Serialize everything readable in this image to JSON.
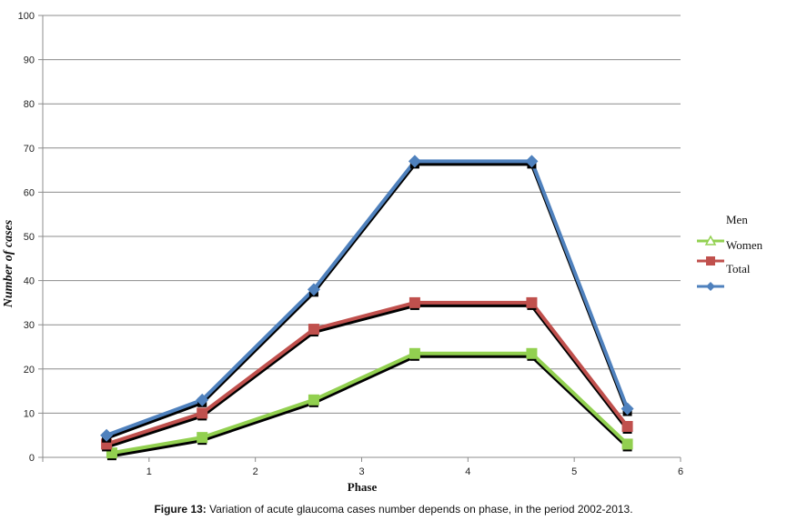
{
  "chart_data": {
    "type": "line",
    "title": "",
    "xlabel": "Phase",
    "ylabel": "Number of  cases",
    "xlim": [
      0,
      6
    ],
    "ylim": [
      0,
      100
    ],
    "x_ticks": [
      "1",
      "2",
      "3",
      "4",
      "5",
      "6"
    ],
    "y_ticks": [
      "0",
      "10",
      "20",
      "30",
      "40",
      "50",
      "60",
      "70",
      "80",
      "90",
      "100"
    ],
    "grid": "horizontal",
    "legend": "right",
    "legend_labels": [
      "Men",
      "Women",
      "Total"
    ],
    "series": [
      {
        "color": "#92D050",
        "marker": "square",
        "x": [
          0.65,
          1.5,
          2.55,
          3.5,
          4.6,
          5.5
        ],
        "y": [
          1,
          4.5,
          13,
          23.5,
          23.5,
          3
        ]
      },
      {
        "color": "#C0504D",
        "marker": "square",
        "x": [
          0.6,
          1.5,
          2.55,
          3.5,
          4.6,
          5.5
        ],
        "y": [
          3,
          10,
          29,
          35,
          35,
          7
        ]
      },
      {
        "color": "#4F81BD",
        "marker": "diamond",
        "x": [
          0.6,
          1.5,
          2.55,
          3.5,
          4.6,
          5.5
        ],
        "y": [
          5,
          13,
          38,
          67,
          67,
          11
        ]
      }
    ]
  },
  "caption": {
    "prefix": "Figure 13:",
    "text": " Variation of acute glaucoma cases number depends on phase, in the period 2002-2013."
  }
}
